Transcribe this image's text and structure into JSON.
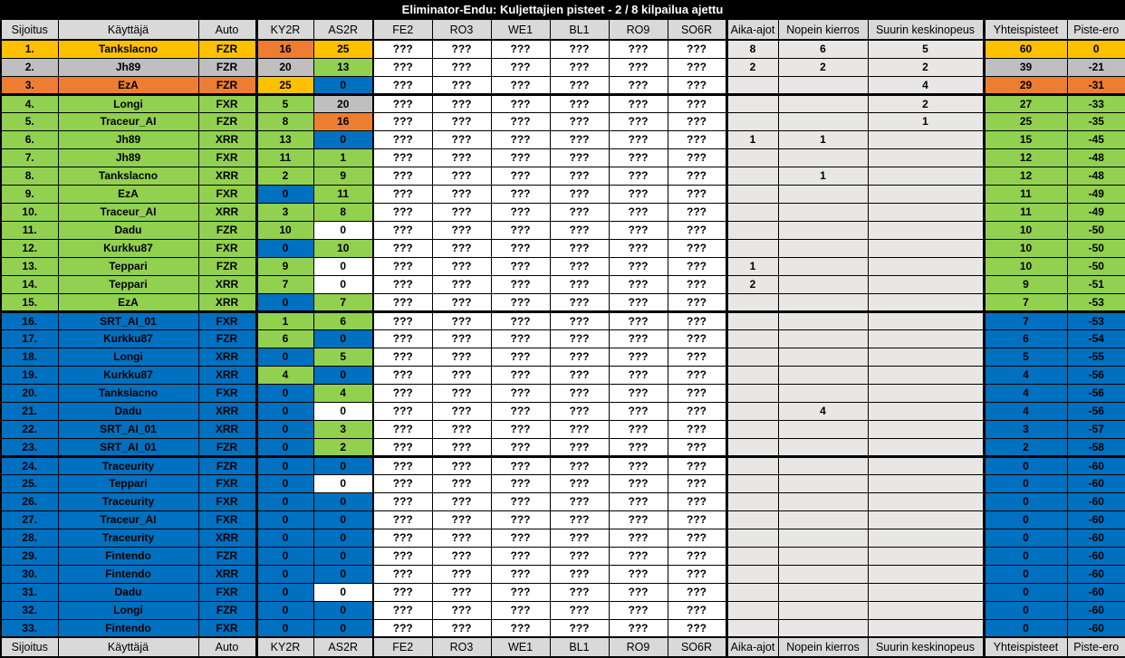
{
  "title": "Eliminator-Endu: Kuljettajien pisteet - 2 / 8 kilpailua ajettu",
  "columns": [
    "Sijoitus",
    "Käyttäjä",
    "Auto",
    "KY2R",
    "AS2R",
    "FE2",
    "RO3",
    "WE1",
    "BL1",
    "RO9",
    "SO6R",
    "Aika-ajot",
    "Nopein kierros",
    "Suurin keskinopeus",
    "Yhteispisteet",
    "Piste-ero"
  ],
  "played_races": [
    "KY2R",
    "AS2R"
  ],
  "future_races": [
    "FE2",
    "RO3",
    "WE1",
    "BL1",
    "RO9",
    "SO6R"
  ],
  "unknown_value": "???",
  "races_played_count": 2,
  "races_total_count": 8,
  "colors": {
    "gold": "#FFC000",
    "silver": "#BFBFBF",
    "orange": "#ED7D31",
    "green": "#92D050",
    "blue": "#0070C0",
    "white": "#FFFFFF",
    "stat_bg": "#E8E7E6",
    "header_bg": "#D9D9D9",
    "title_bg": "#000000",
    "title_fg": "#FFFFFF"
  },
  "rows": [
    {
      "pos": "1.",
      "user": "Tankslacno",
      "auto": "FZR",
      "color": "gold",
      "section_end": false,
      "races": [
        {
          "v": "16",
          "c": "orange"
        },
        {
          "v": "25",
          "c": "gold"
        }
      ],
      "aika": "8",
      "nopein": "6",
      "suurin": "5",
      "yht": "60",
      "ero": "0"
    },
    {
      "pos": "2.",
      "user": "Jh89",
      "auto": "FZR",
      "color": "silver",
      "section_end": false,
      "races": [
        {
          "v": "20",
          "c": "silver"
        },
        {
          "v": "13",
          "c": "green"
        }
      ],
      "aika": "2",
      "nopein": "2",
      "suurin": "2",
      "yht": "39",
      "ero": "-21"
    },
    {
      "pos": "3.",
      "user": "EzA",
      "auto": "FZR",
      "color": "orange",
      "section_end": true,
      "races": [
        {
          "v": "25",
          "c": "gold"
        },
        {
          "v": "0",
          "c": "blue"
        }
      ],
      "aika": "",
      "nopein": "",
      "suurin": "4",
      "yht": "29",
      "ero": "-31"
    },
    {
      "pos": "4.",
      "user": "Longi",
      "auto": "FXR",
      "color": "green",
      "section_end": false,
      "races": [
        {
          "v": "5",
          "c": "green"
        },
        {
          "v": "20",
          "c": "silver"
        }
      ],
      "aika": "",
      "nopein": "",
      "suurin": "2",
      "yht": "27",
      "ero": "-33"
    },
    {
      "pos": "5.",
      "user": "Traceur_AI",
      "auto": "FZR",
      "color": "green",
      "section_end": false,
      "races": [
        {
          "v": "8",
          "c": "green"
        },
        {
          "v": "16",
          "c": "orange"
        }
      ],
      "aika": "",
      "nopein": "",
      "suurin": "1",
      "yht": "25",
      "ero": "-35"
    },
    {
      "pos": "6.",
      "user": "Jh89",
      "auto": "XRR",
      "color": "green",
      "section_end": false,
      "races": [
        {
          "v": "13",
          "c": "green"
        },
        {
          "v": "0",
          "c": "blue"
        }
      ],
      "aika": "1",
      "nopein": "1",
      "suurin": "",
      "yht": "15",
      "ero": "-45"
    },
    {
      "pos": "7.",
      "user": "Jh89",
      "auto": "FXR",
      "color": "green",
      "section_end": false,
      "races": [
        {
          "v": "11",
          "c": "green"
        },
        {
          "v": "1",
          "c": "green"
        }
      ],
      "aika": "",
      "nopein": "",
      "suurin": "",
      "yht": "12",
      "ero": "-48"
    },
    {
      "pos": "8.",
      "user": "Tankslacno",
      "auto": "XRR",
      "color": "green",
      "section_end": false,
      "races": [
        {
          "v": "2",
          "c": "green"
        },
        {
          "v": "9",
          "c": "green"
        }
      ],
      "aika": "",
      "nopein": "1",
      "suurin": "",
      "yht": "12",
      "ero": "-48"
    },
    {
      "pos": "9.",
      "user": "EzA",
      "auto": "FXR",
      "color": "green",
      "section_end": false,
      "races": [
        {
          "v": "0",
          "c": "blue"
        },
        {
          "v": "11",
          "c": "green"
        }
      ],
      "aika": "",
      "nopein": "",
      "suurin": "",
      "yht": "11",
      "ero": "-49"
    },
    {
      "pos": "10.",
      "user": "Traceur_AI",
      "auto": "XRR",
      "color": "green",
      "section_end": false,
      "races": [
        {
          "v": "3",
          "c": "green"
        },
        {
          "v": "8",
          "c": "green"
        }
      ],
      "aika": "",
      "nopein": "",
      "suurin": "",
      "yht": "11",
      "ero": "-49"
    },
    {
      "pos": "11.",
      "user": "Dadu",
      "auto": "FZR",
      "color": "green",
      "section_end": false,
      "races": [
        {
          "v": "10",
          "c": "green"
        },
        {
          "v": "0",
          "c": "white"
        }
      ],
      "aika": "",
      "nopein": "",
      "suurin": "",
      "yht": "10",
      "ero": "-50"
    },
    {
      "pos": "12.",
      "user": "Kurkku87",
      "auto": "FXR",
      "color": "green",
      "section_end": false,
      "races": [
        {
          "v": "0",
          "c": "blue"
        },
        {
          "v": "10",
          "c": "green"
        }
      ],
      "aika": "",
      "nopein": "",
      "suurin": "",
      "yht": "10",
      "ero": "-50"
    },
    {
      "pos": "13.",
      "user": "Teppari",
      "auto": "FZR",
      "color": "green",
      "section_end": false,
      "races": [
        {
          "v": "9",
          "c": "green"
        },
        {
          "v": "0",
          "c": "white"
        }
      ],
      "aika": "1",
      "nopein": "",
      "suurin": "",
      "yht": "10",
      "ero": "-50"
    },
    {
      "pos": "14.",
      "user": "Teppari",
      "auto": "XRR",
      "color": "green",
      "section_end": false,
      "races": [
        {
          "v": "7",
          "c": "green"
        },
        {
          "v": "0",
          "c": "white"
        }
      ],
      "aika": "2",
      "nopein": "",
      "suurin": "",
      "yht": "9",
      "ero": "-51"
    },
    {
      "pos": "15.",
      "user": "EzA",
      "auto": "XRR",
      "color": "green",
      "section_end": true,
      "races": [
        {
          "v": "0",
          "c": "blue"
        },
        {
          "v": "7",
          "c": "green"
        }
      ],
      "aika": "",
      "nopein": "",
      "suurin": "",
      "yht": "7",
      "ero": "-53"
    },
    {
      "pos": "16.",
      "user": "SRT_AI_01",
      "auto": "FXR",
      "color": "blue",
      "section_end": false,
      "races": [
        {
          "v": "1",
          "c": "green"
        },
        {
          "v": "6",
          "c": "green"
        }
      ],
      "aika": "",
      "nopein": "",
      "suurin": "",
      "yht": "7",
      "ero": "-53"
    },
    {
      "pos": "17.",
      "user": "Kurkku87",
      "auto": "FZR",
      "color": "blue",
      "section_end": false,
      "races": [
        {
          "v": "6",
          "c": "green"
        },
        {
          "v": "0",
          "c": "blue"
        }
      ],
      "aika": "",
      "nopein": "",
      "suurin": "",
      "yht": "6",
      "ero": "-54"
    },
    {
      "pos": "18.",
      "user": "Longi",
      "auto": "XRR",
      "color": "blue",
      "section_end": false,
      "races": [
        {
          "v": "0",
          "c": "blue"
        },
        {
          "v": "5",
          "c": "green"
        }
      ],
      "aika": "",
      "nopein": "",
      "suurin": "",
      "yht": "5",
      "ero": "-55"
    },
    {
      "pos": "19.",
      "user": "Kurkku87",
      "auto": "XRR",
      "color": "blue",
      "section_end": false,
      "races": [
        {
          "v": "4",
          "c": "green"
        },
        {
          "v": "0",
          "c": "blue"
        }
      ],
      "aika": "",
      "nopein": "",
      "suurin": "",
      "yht": "4",
      "ero": "-56"
    },
    {
      "pos": "20.",
      "user": "Tankslacno",
      "auto": "FXR",
      "color": "blue",
      "section_end": false,
      "races": [
        {
          "v": "0",
          "c": "blue"
        },
        {
          "v": "4",
          "c": "green"
        }
      ],
      "aika": "",
      "nopein": "",
      "suurin": "",
      "yht": "4",
      "ero": "-56"
    },
    {
      "pos": "21.",
      "user": "Dadu",
      "auto": "XRR",
      "color": "blue",
      "section_end": false,
      "races": [
        {
          "v": "0",
          "c": "blue"
        },
        {
          "v": "0",
          "c": "white"
        }
      ],
      "aika": "",
      "nopein": "4",
      "suurin": "",
      "yht": "4",
      "ero": "-56"
    },
    {
      "pos": "22.",
      "user": "SRT_AI_01",
      "auto": "XRR",
      "color": "blue",
      "section_end": false,
      "races": [
        {
          "v": "0",
          "c": "blue"
        },
        {
          "v": "3",
          "c": "green"
        }
      ],
      "aika": "",
      "nopein": "",
      "suurin": "",
      "yht": "3",
      "ero": "-57"
    },
    {
      "pos": "23.",
      "user": "SRT_AI_01",
      "auto": "FZR",
      "color": "blue",
      "section_end": true,
      "races": [
        {
          "v": "0",
          "c": "blue"
        },
        {
          "v": "2",
          "c": "green"
        }
      ],
      "aika": "",
      "nopein": "",
      "suurin": "",
      "yht": "2",
      "ero": "-58"
    },
    {
      "pos": "24.",
      "user": "Traceurity",
      "auto": "FZR",
      "color": "blue",
      "section_end": false,
      "races": [
        {
          "v": "0",
          "c": "blue"
        },
        {
          "v": "0",
          "c": "blue"
        }
      ],
      "aika": "",
      "nopein": "",
      "suurin": "",
      "yht": "0",
      "ero": "-60"
    },
    {
      "pos": "25.",
      "user": "Teppari",
      "auto": "FXR",
      "color": "blue",
      "section_end": false,
      "races": [
        {
          "v": "0",
          "c": "blue"
        },
        {
          "v": "0",
          "c": "white"
        }
      ],
      "aika": "",
      "nopein": "",
      "suurin": "",
      "yht": "0",
      "ero": "-60"
    },
    {
      "pos": "26.",
      "user": "Traceurity",
      "auto": "FXR",
      "color": "blue",
      "section_end": false,
      "races": [
        {
          "v": "0",
          "c": "blue"
        },
        {
          "v": "0",
          "c": "blue"
        }
      ],
      "aika": "",
      "nopein": "",
      "suurin": "",
      "yht": "0",
      "ero": "-60"
    },
    {
      "pos": "27.",
      "user": "Traceur_AI",
      "auto": "FXR",
      "color": "blue",
      "section_end": false,
      "races": [
        {
          "v": "0",
          "c": "blue"
        },
        {
          "v": "0",
          "c": "blue"
        }
      ],
      "aika": "",
      "nopein": "",
      "suurin": "",
      "yht": "0",
      "ero": "-60"
    },
    {
      "pos": "28.",
      "user": "Traceurity",
      "auto": "XRR",
      "color": "blue",
      "section_end": false,
      "races": [
        {
          "v": "0",
          "c": "blue"
        },
        {
          "v": "0",
          "c": "blue"
        }
      ],
      "aika": "",
      "nopein": "",
      "suurin": "",
      "yht": "0",
      "ero": "-60"
    },
    {
      "pos": "29.",
      "user": "Fintendo",
      "auto": "FZR",
      "color": "blue",
      "section_end": false,
      "races": [
        {
          "v": "0",
          "c": "blue"
        },
        {
          "v": "0",
          "c": "blue"
        }
      ],
      "aika": "",
      "nopein": "",
      "suurin": "",
      "yht": "0",
      "ero": "-60"
    },
    {
      "pos": "30.",
      "user": "Fintendo",
      "auto": "XRR",
      "color": "blue",
      "section_end": false,
      "races": [
        {
          "v": "0",
          "c": "blue"
        },
        {
          "v": "0",
          "c": "blue"
        }
      ],
      "aika": "",
      "nopein": "",
      "suurin": "",
      "yht": "0",
      "ero": "-60"
    },
    {
      "pos": "31.",
      "user": "Dadu",
      "auto": "FXR",
      "color": "blue",
      "section_end": false,
      "races": [
        {
          "v": "0",
          "c": "blue"
        },
        {
          "v": "0",
          "c": "white"
        }
      ],
      "aika": "",
      "nopein": "",
      "suurin": "",
      "yht": "0",
      "ero": "-60"
    },
    {
      "pos": "32.",
      "user": "Longi",
      "auto": "FZR",
      "color": "blue",
      "section_end": false,
      "races": [
        {
          "v": "0",
          "c": "blue"
        },
        {
          "v": "0",
          "c": "blue"
        }
      ],
      "aika": "",
      "nopein": "",
      "suurin": "",
      "yht": "0",
      "ero": "-60"
    },
    {
      "pos": "33.",
      "user": "Fintendo",
      "auto": "FXR",
      "color": "blue",
      "section_end": false,
      "races": [
        {
          "v": "0",
          "c": "blue"
        },
        {
          "v": "0",
          "c": "blue"
        }
      ],
      "aika": "",
      "nopein": "",
      "suurin": "",
      "yht": "0",
      "ero": "-60"
    }
  ]
}
